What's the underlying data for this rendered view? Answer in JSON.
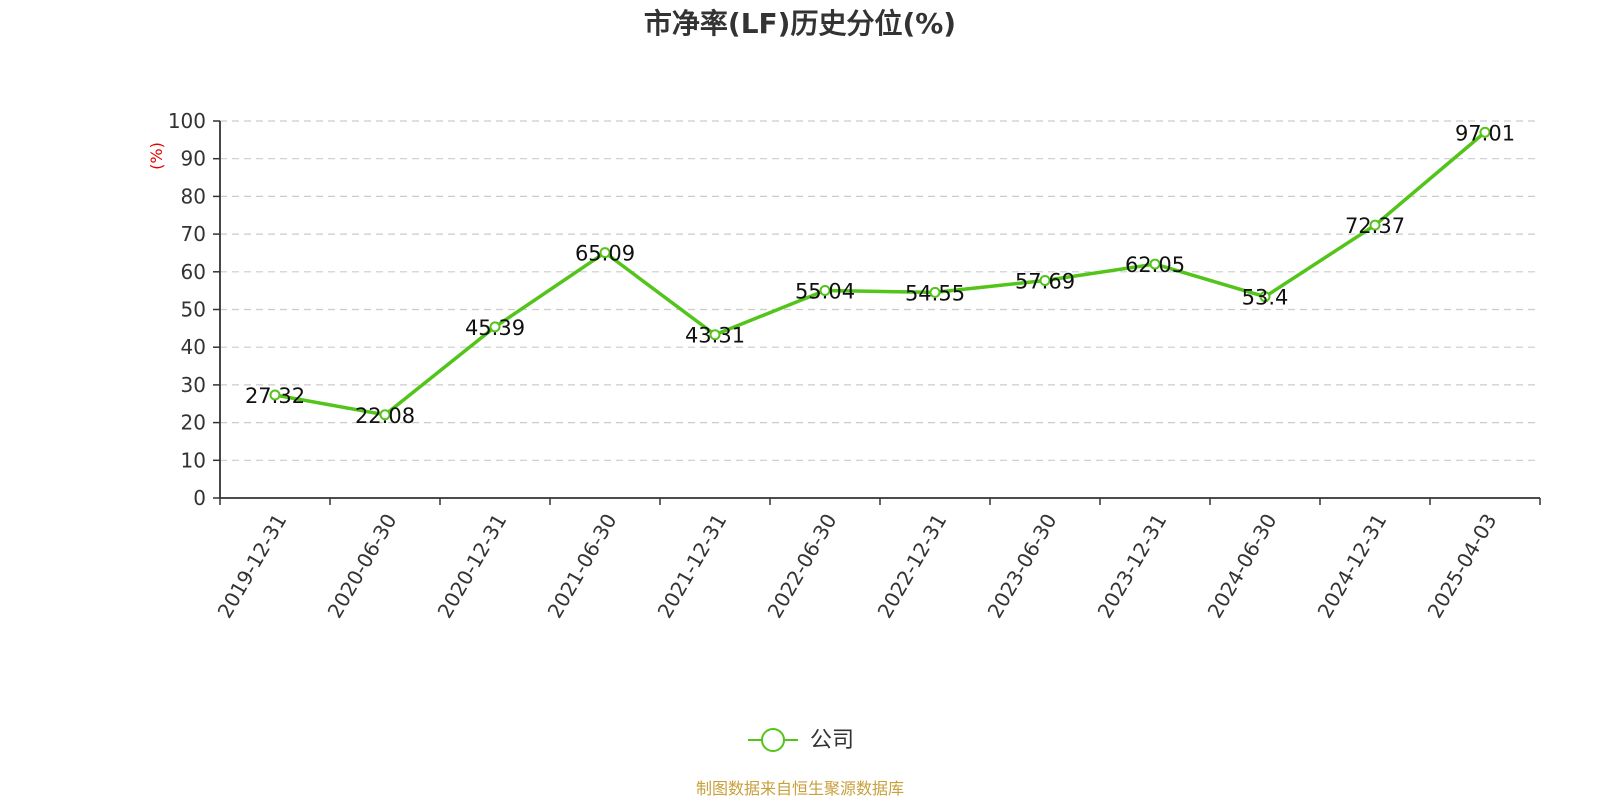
{
  "chart_data": {
    "type": "line",
    "title": "市净率(LF)历史分位(%)",
    "ylabel": "(%)",
    "xlabel": "",
    "ylim": [
      0,
      100
    ],
    "yticks": [
      0,
      10,
      20,
      30,
      40,
      50,
      60,
      70,
      80,
      90,
      100
    ],
    "grid": true,
    "legend_position": "bottom-center",
    "categories": [
      "2019-12-31",
      "2020-06-30",
      "2020-12-31",
      "2021-06-30",
      "2021-12-31",
      "2022-06-30",
      "2022-12-31",
      "2023-06-30",
      "2023-12-31",
      "2024-06-30",
      "2024-12-31",
      "2025-04-03"
    ],
    "series": [
      {
        "name": "公司",
        "values": [
          27.32,
          22.08,
          45.39,
          65.09,
          43.31,
          55.04,
          54.55,
          57.69,
          62.05,
          53.4,
          72.37,
          97.01
        ],
        "labels": [
          "27.32",
          "22.08",
          "45.39",
          "65.09",
          "43.31",
          "55.04",
          "54.55",
          "57.69",
          "62.05",
          "53.4",
          "72.37",
          "97.01"
        ]
      }
    ],
    "source": "制图数据来自恒生聚源数据库"
  },
  "colors": {
    "series": "#52c41a",
    "ylabel": "#e60000",
    "source": "#c8a03c",
    "grid": "#cccccc",
    "axis": "#333333"
  }
}
